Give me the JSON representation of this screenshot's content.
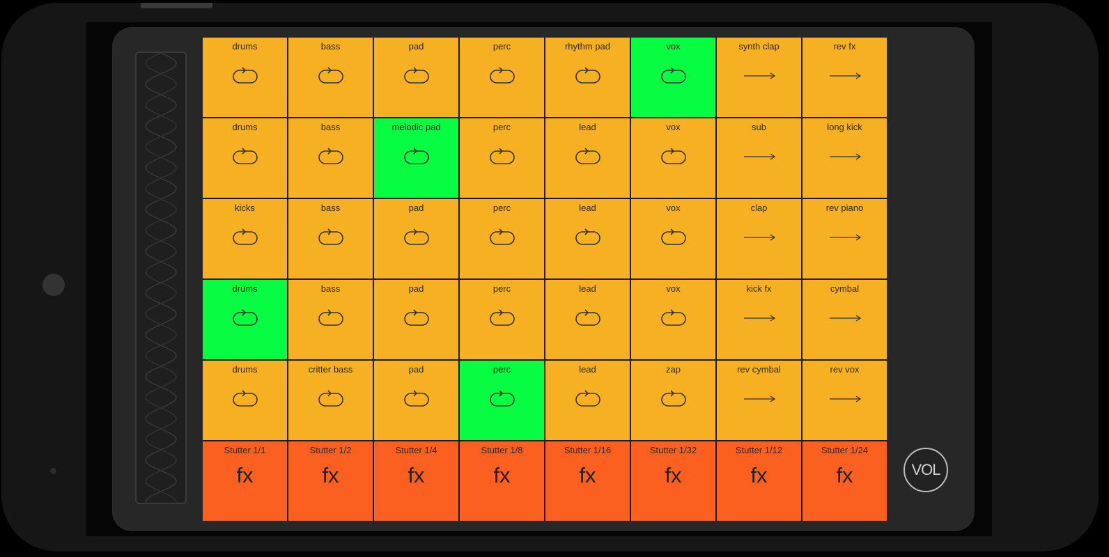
{
  "grid": {
    "rows": [
      [
        {
          "label": "drums",
          "icon": "loop-icon",
          "active": false
        },
        {
          "label": "bass",
          "icon": "loop-icon",
          "active": false
        },
        {
          "label": "pad",
          "icon": "loop-icon",
          "active": false
        },
        {
          "label": "perc",
          "icon": "loop-icon",
          "active": false
        },
        {
          "label": "rhythm pad",
          "icon": "loop-icon",
          "active": false
        },
        {
          "label": "vox",
          "icon": "loop-icon",
          "active": true
        },
        {
          "label": "synth clap",
          "icon": "oneshot-arrow-icon",
          "active": false
        },
        {
          "label": "rev fx",
          "icon": "oneshot-arrow-icon",
          "active": false
        }
      ],
      [
        {
          "label": "drums",
          "icon": "loop-icon",
          "active": false
        },
        {
          "label": "bass",
          "icon": "loop-icon",
          "active": false
        },
        {
          "label": "melodic pad",
          "icon": "loop-icon",
          "active": true
        },
        {
          "label": "perc",
          "icon": "loop-icon",
          "active": false
        },
        {
          "label": "lead",
          "icon": "loop-icon",
          "active": false
        },
        {
          "label": "vox",
          "icon": "loop-icon",
          "active": false
        },
        {
          "label": "sub",
          "icon": "oneshot-arrow-icon",
          "active": false
        },
        {
          "label": "long kick",
          "icon": "oneshot-arrow-icon",
          "active": false
        }
      ],
      [
        {
          "label": "kicks",
          "icon": "loop-icon",
          "active": false
        },
        {
          "label": "bass",
          "icon": "loop-icon",
          "active": false
        },
        {
          "label": "pad",
          "icon": "loop-icon",
          "active": false
        },
        {
          "label": "perc",
          "icon": "loop-icon",
          "active": false
        },
        {
          "label": "lead",
          "icon": "loop-icon",
          "active": false
        },
        {
          "label": "vox",
          "icon": "loop-icon",
          "active": false
        },
        {
          "label": "clap",
          "icon": "oneshot-arrow-icon",
          "active": false
        },
        {
          "label": "rev piano",
          "icon": "oneshot-arrow-icon",
          "active": false
        }
      ],
      [
        {
          "label": "drums",
          "icon": "loop-icon",
          "active": true
        },
        {
          "label": "bass",
          "icon": "loop-icon",
          "active": false
        },
        {
          "label": "pad",
          "icon": "loop-icon",
          "active": false
        },
        {
          "label": "perc",
          "icon": "loop-icon",
          "active": false
        },
        {
          "label": "lead",
          "icon": "loop-icon",
          "active": false
        },
        {
          "label": "vox",
          "icon": "loop-icon",
          "active": false
        },
        {
          "label": "kick fx",
          "icon": "oneshot-arrow-icon",
          "active": false
        },
        {
          "label": "cymbal",
          "icon": "oneshot-arrow-icon",
          "active": false
        }
      ],
      [
        {
          "label": "drums",
          "icon": "loop-icon",
          "active": false
        },
        {
          "label": "critter bass",
          "icon": "loop-icon",
          "active": false
        },
        {
          "label": "pad",
          "icon": "loop-icon",
          "active": false
        },
        {
          "label": "perc",
          "icon": "loop-icon",
          "active": true
        },
        {
          "label": "lead",
          "icon": "loop-icon",
          "active": false
        },
        {
          "label": "zap",
          "icon": "loop-icon",
          "active": false
        },
        {
          "label": "rev cymbal",
          "icon": "oneshot-arrow-icon",
          "active": false
        },
        {
          "label": "rev vox",
          "icon": "oneshot-arrow-icon",
          "active": false
        }
      ]
    ],
    "fx": [
      {
        "label": "Stutter 1/1",
        "symbol": "fx"
      },
      {
        "label": "Stutter 1/2",
        "symbol": "fx"
      },
      {
        "label": "Stutter 1/4",
        "symbol": "fx"
      },
      {
        "label": "Stutter 1/8",
        "symbol": "fx"
      },
      {
        "label": "Stutter 1/16",
        "symbol": "fx"
      },
      {
        "label": "Stutter 1/32",
        "symbol": "fx"
      },
      {
        "label": "Stutter 1/12",
        "symbol": "fx"
      },
      {
        "label": "Stutter 1/24",
        "symbol": "fx"
      }
    ]
  },
  "volume": {
    "label": "VOL"
  },
  "colors": {
    "pad": "#f8b023",
    "pad_active": "#06fd42",
    "fx_pad": "#fb6020",
    "background": "#272727"
  }
}
